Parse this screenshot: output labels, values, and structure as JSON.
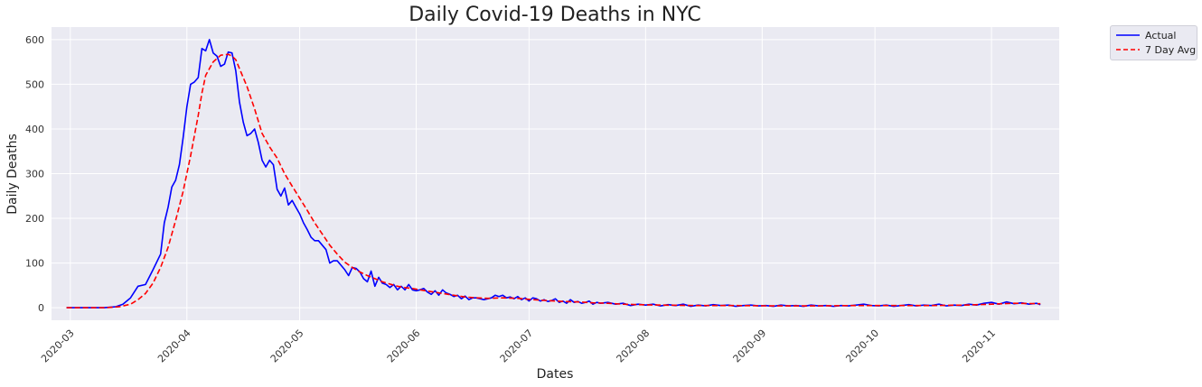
{
  "chart_data": {
    "type": "line",
    "title": "Daily Covid-19 Deaths in NYC",
    "xlabel": "Dates",
    "ylabel": "Daily Deaths",
    "x_start": "2020-02-29",
    "x_end": "2020-11-14",
    "xlim": [
      "2020-02-25",
      "2020-11-19"
    ],
    "ylim": [
      -28,
      628
    ],
    "yticks": [
      0,
      100,
      200,
      300,
      400,
      500,
      600
    ],
    "xticks": [
      "2020-03",
      "2020-04",
      "2020-05",
      "2020-06",
      "2020-07",
      "2020-08",
      "2020-09",
      "2020-10",
      "2020-11"
    ],
    "grid": true,
    "legend_position": "outside-top-right",
    "background": "#eaeaf2",
    "series": [
      {
        "name": "Actual",
        "color": "#0000ff",
        "style": "solid",
        "points": [
          [
            "2020-02-29",
            0
          ],
          [
            "2020-03-10",
            0
          ],
          [
            "2020-03-13",
            2
          ],
          [
            "2020-03-15",
            8
          ],
          [
            "2020-03-17",
            22
          ],
          [
            "2020-03-19",
            48
          ],
          [
            "2020-03-21",
            52
          ],
          [
            "2020-03-23",
            85
          ],
          [
            "2020-03-25",
            120
          ],
          [
            "2020-03-26",
            190
          ],
          [
            "2020-03-27",
            225
          ],
          [
            "2020-03-28",
            270
          ],
          [
            "2020-03-29",
            285
          ],
          [
            "2020-03-30",
            320
          ],
          [
            "2020-03-31",
            380
          ],
          [
            "2020-04-01",
            450
          ],
          [
            "2020-04-02",
            500
          ],
          [
            "2020-04-03",
            505
          ],
          [
            "2020-04-04",
            515
          ],
          [
            "2020-04-05",
            580
          ],
          [
            "2020-04-06",
            575
          ],
          [
            "2020-04-07",
            600
          ],
          [
            "2020-04-08",
            570
          ],
          [
            "2020-04-09",
            563
          ],
          [
            "2020-04-10",
            540
          ],
          [
            "2020-04-11",
            545
          ],
          [
            "2020-04-12",
            572
          ],
          [
            "2020-04-13",
            570
          ],
          [
            "2020-04-14",
            530
          ],
          [
            "2020-04-15",
            460
          ],
          [
            "2020-04-16",
            415
          ],
          [
            "2020-04-17",
            385
          ],
          [
            "2020-04-18",
            390
          ],
          [
            "2020-04-19",
            400
          ],
          [
            "2020-04-20",
            370
          ],
          [
            "2020-04-21",
            330
          ],
          [
            "2020-04-22",
            315
          ],
          [
            "2020-04-23",
            330
          ],
          [
            "2020-04-24",
            320
          ],
          [
            "2020-04-25",
            265
          ],
          [
            "2020-04-26",
            250
          ],
          [
            "2020-04-27",
            268
          ],
          [
            "2020-04-28",
            230
          ],
          [
            "2020-04-29",
            240
          ],
          [
            "2020-04-30",
            225
          ],
          [
            "2020-05-01",
            210
          ],
          [
            "2020-05-02",
            190
          ],
          [
            "2020-05-03",
            175
          ],
          [
            "2020-05-04",
            158
          ],
          [
            "2020-05-05",
            150
          ],
          [
            "2020-05-06",
            150
          ],
          [
            "2020-05-07",
            140
          ],
          [
            "2020-05-08",
            130
          ],
          [
            "2020-05-09",
            100
          ],
          [
            "2020-05-10",
            105
          ],
          [
            "2020-05-11",
            105
          ],
          [
            "2020-05-12",
            95
          ],
          [
            "2020-05-13",
            85
          ],
          [
            "2020-05-14",
            72
          ],
          [
            "2020-05-15",
            90
          ],
          [
            "2020-05-16",
            88
          ],
          [
            "2020-05-17",
            80
          ],
          [
            "2020-05-18",
            65
          ],
          [
            "2020-05-19",
            58
          ],
          [
            "2020-05-20",
            82
          ],
          [
            "2020-05-21",
            48
          ],
          [
            "2020-05-22",
            68
          ],
          [
            "2020-05-23",
            55
          ],
          [
            "2020-05-24",
            52
          ],
          [
            "2020-05-25",
            45
          ],
          [
            "2020-05-26",
            52
          ],
          [
            "2020-05-27",
            40
          ],
          [
            "2020-05-28",
            48
          ],
          [
            "2020-05-29",
            40
          ],
          [
            "2020-05-30",
            52
          ],
          [
            "2020-05-31",
            40
          ],
          [
            "2020-06-01",
            38
          ],
          [
            "2020-06-02",
            40
          ],
          [
            "2020-06-03",
            43
          ],
          [
            "2020-06-04",
            35
          ],
          [
            "2020-06-05",
            30
          ],
          [
            "2020-06-06",
            38
          ],
          [
            "2020-06-07",
            28
          ],
          [
            "2020-06-08",
            40
          ],
          [
            "2020-06-09",
            33
          ],
          [
            "2020-06-10",
            30
          ],
          [
            "2020-06-11",
            25
          ],
          [
            "2020-06-12",
            28
          ],
          [
            "2020-06-13",
            20
          ],
          [
            "2020-06-14",
            26
          ],
          [
            "2020-06-15",
            18
          ],
          [
            "2020-06-16",
            22
          ],
          [
            "2020-06-17",
            22
          ],
          [
            "2020-06-18",
            20
          ],
          [
            "2020-06-19",
            18
          ],
          [
            "2020-06-20",
            20
          ],
          [
            "2020-06-21",
            22
          ],
          [
            "2020-06-22",
            28
          ],
          [
            "2020-06-23",
            25
          ],
          [
            "2020-06-24",
            28
          ],
          [
            "2020-06-25",
            22
          ],
          [
            "2020-06-26",
            24
          ],
          [
            "2020-06-27",
            20
          ],
          [
            "2020-06-28",
            25
          ],
          [
            "2020-06-29",
            18
          ],
          [
            "2020-06-30",
            22
          ],
          [
            "2020-07-01",
            15
          ],
          [
            "2020-07-02",
            22
          ],
          [
            "2020-07-03",
            20
          ],
          [
            "2020-07-04",
            15
          ],
          [
            "2020-07-05",
            18
          ],
          [
            "2020-07-06",
            14
          ],
          [
            "2020-07-07",
            16
          ],
          [
            "2020-07-08",
            20
          ],
          [
            "2020-07-09",
            12
          ],
          [
            "2020-07-10",
            15
          ],
          [
            "2020-07-11",
            10
          ],
          [
            "2020-07-12",
            18
          ],
          [
            "2020-07-13",
            12
          ],
          [
            "2020-07-14",
            14
          ],
          [
            "2020-07-15",
            10
          ],
          [
            "2020-07-16",
            12
          ],
          [
            "2020-07-17",
            15
          ],
          [
            "2020-07-18",
            8
          ],
          [
            "2020-07-19",
            12
          ],
          [
            "2020-07-20",
            10
          ],
          [
            "2020-07-22",
            12
          ],
          [
            "2020-07-24",
            8
          ],
          [
            "2020-07-26",
            10
          ],
          [
            "2020-07-28",
            5
          ],
          [
            "2020-07-30",
            8
          ],
          [
            "2020-08-01",
            6
          ],
          [
            "2020-08-03",
            8
          ],
          [
            "2020-08-05",
            4
          ],
          [
            "2020-08-07",
            7
          ],
          [
            "2020-08-09",
            5
          ],
          [
            "2020-08-11",
            8
          ],
          [
            "2020-08-13",
            3
          ],
          [
            "2020-08-15",
            6
          ],
          [
            "2020-08-17",
            4
          ],
          [
            "2020-08-19",
            7
          ],
          [
            "2020-08-21",
            5
          ],
          [
            "2020-08-23",
            6
          ],
          [
            "2020-08-25",
            3
          ],
          [
            "2020-08-27",
            5
          ],
          [
            "2020-08-29",
            6
          ],
          [
            "2020-08-31",
            4
          ],
          [
            "2020-09-02",
            5
          ],
          [
            "2020-09-04",
            3
          ],
          [
            "2020-09-06",
            6
          ],
          [
            "2020-09-08",
            4
          ],
          [
            "2020-09-10",
            5
          ],
          [
            "2020-09-12",
            3
          ],
          [
            "2020-09-14",
            6
          ],
          [
            "2020-09-16",
            4
          ],
          [
            "2020-09-18",
            5
          ],
          [
            "2020-09-20",
            3
          ],
          [
            "2020-09-22",
            5
          ],
          [
            "2020-09-24",
            4
          ],
          [
            "2020-09-26",
            6
          ],
          [
            "2020-09-28",
            8
          ],
          [
            "2020-09-30",
            5
          ],
          [
            "2020-10-02",
            4
          ],
          [
            "2020-10-04",
            6
          ],
          [
            "2020-10-06",
            3
          ],
          [
            "2020-10-08",
            5
          ],
          [
            "2020-10-10",
            7
          ],
          [
            "2020-10-12",
            4
          ],
          [
            "2020-10-14",
            6
          ],
          [
            "2020-10-16",
            5
          ],
          [
            "2020-10-18",
            8
          ],
          [
            "2020-10-20",
            4
          ],
          [
            "2020-10-22",
            6
          ],
          [
            "2020-10-24",
            5
          ],
          [
            "2020-10-26",
            8
          ],
          [
            "2020-10-28",
            6
          ],
          [
            "2020-10-30",
            10
          ],
          [
            "2020-11-01",
            12
          ],
          [
            "2020-11-03",
            8
          ],
          [
            "2020-11-05",
            13
          ],
          [
            "2020-11-07",
            9
          ],
          [
            "2020-11-09",
            11
          ],
          [
            "2020-11-11",
            8
          ],
          [
            "2020-11-13",
            10
          ],
          [
            "2020-11-14",
            7
          ]
        ]
      },
      {
        "name": "7 Day Avg",
        "color": "#ff0000",
        "style": "dashed",
        "points": [
          [
            "2020-02-29",
            0
          ],
          [
            "2020-03-10",
            0
          ],
          [
            "2020-03-14",
            2
          ],
          [
            "2020-03-17",
            8
          ],
          [
            "2020-03-19",
            18
          ],
          [
            "2020-03-21",
            32
          ],
          [
            "2020-03-23",
            55
          ],
          [
            "2020-03-25",
            90
          ],
          [
            "2020-03-27",
            135
          ],
          [
            "2020-03-29",
            195
          ],
          [
            "2020-03-31",
            260
          ],
          [
            "2020-04-02",
            340
          ],
          [
            "2020-04-04",
            430
          ],
          [
            "2020-04-05",
            480
          ],
          [
            "2020-04-06",
            520
          ],
          [
            "2020-04-08",
            550
          ],
          [
            "2020-04-10",
            565
          ],
          [
            "2020-04-12",
            567
          ],
          [
            "2020-04-13",
            563
          ],
          [
            "2020-04-14",
            555
          ],
          [
            "2020-04-15",
            535
          ],
          [
            "2020-04-17",
            495
          ],
          [
            "2020-04-19",
            445
          ],
          [
            "2020-04-21",
            390
          ],
          [
            "2020-04-23",
            360
          ],
          [
            "2020-04-25",
            335
          ],
          [
            "2020-04-27",
            300
          ],
          [
            "2020-04-29",
            272
          ],
          [
            "2020-05-01",
            245
          ],
          [
            "2020-05-03",
            218
          ],
          [
            "2020-05-05",
            190
          ],
          [
            "2020-05-07",
            165
          ],
          [
            "2020-05-09",
            140
          ],
          [
            "2020-05-11",
            120
          ],
          [
            "2020-05-13",
            102
          ],
          [
            "2020-05-15",
            90
          ],
          [
            "2020-05-17",
            80
          ],
          [
            "2020-05-19",
            72
          ],
          [
            "2020-05-21",
            65
          ],
          [
            "2020-05-23",
            58
          ],
          [
            "2020-05-25",
            53
          ],
          [
            "2020-05-27",
            48
          ],
          [
            "2020-05-29",
            45
          ],
          [
            "2020-05-31",
            43
          ],
          [
            "2020-06-02",
            40
          ],
          [
            "2020-06-05",
            36
          ],
          [
            "2020-06-08",
            32
          ],
          [
            "2020-06-11",
            28
          ],
          [
            "2020-06-14",
            24
          ],
          [
            "2020-06-17",
            22
          ],
          [
            "2020-06-20",
            21
          ],
          [
            "2020-06-24",
            22
          ],
          [
            "2020-06-28",
            21
          ],
          [
            "2020-07-02",
            18
          ],
          [
            "2020-07-06",
            16
          ],
          [
            "2020-07-10",
            14
          ],
          [
            "2020-07-14",
            13
          ],
          [
            "2020-07-18",
            11
          ],
          [
            "2020-07-22",
            10
          ],
          [
            "2020-07-26",
            8
          ],
          [
            "2020-07-30",
            7
          ],
          [
            "2020-08-05",
            6
          ],
          [
            "2020-08-15",
            5
          ],
          [
            "2020-08-25",
            5
          ],
          [
            "2020-09-05",
            4
          ],
          [
            "2020-09-15",
            4
          ],
          [
            "2020-09-25",
            5
          ],
          [
            "2020-10-05",
            5
          ],
          [
            "2020-10-15",
            5
          ],
          [
            "2020-10-25",
            6
          ],
          [
            "2020-11-01",
            8
          ],
          [
            "2020-11-07",
            10
          ],
          [
            "2020-11-14",
            9
          ]
        ]
      }
    ]
  }
}
